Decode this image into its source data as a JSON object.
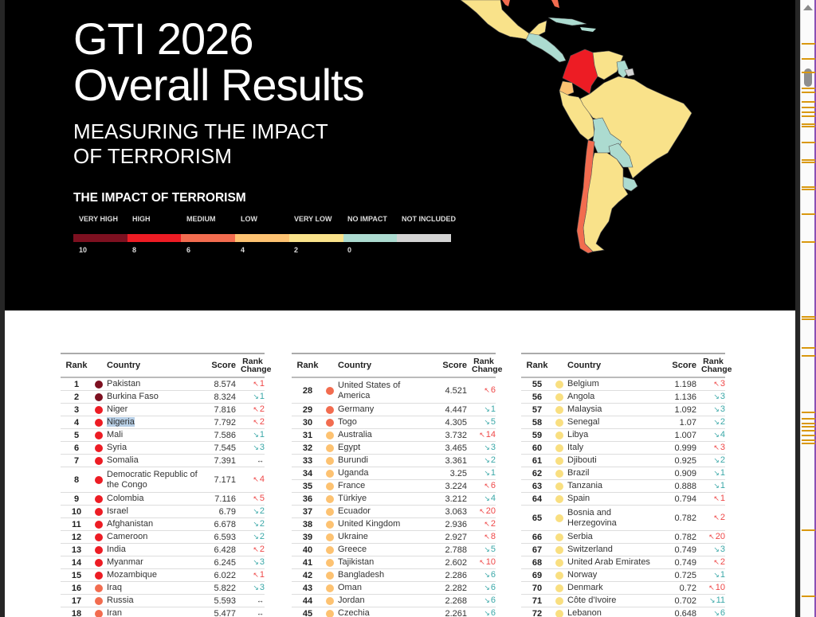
{
  "hero": {
    "title_line1": "GTI 2026",
    "title_line2": "Overall Results",
    "subtitle_line1": "MEASURING THE IMPACT",
    "subtitle_line2": "OF TERRORISM"
  },
  "legend": {
    "title": "THE IMPACT OF TERRORISM",
    "categories": [
      {
        "label": "VERY HIGH",
        "color": "#7d1020"
      },
      {
        "label": "HIGH",
        "color": "#ed1c24"
      },
      {
        "label": "MEDIUM",
        "color": "#f26c4f"
      },
      {
        "label": "LOW",
        "color": "#fdc271"
      },
      {
        "label": "VERY LOW",
        "color": "#f9e28a"
      },
      {
        "label": "NO IMPACT",
        "color": "#acdbd0"
      },
      {
        "label": "NOT INCLUDED",
        "color": "#d3d3d3"
      }
    ],
    "ticks": [
      "10",
      "8",
      "6",
      "4",
      "2",
      "0"
    ]
  },
  "table_headers": {
    "rank": "Rank",
    "country": "Country",
    "score": "Score",
    "change_line1": "Rank",
    "change_line2": "Change"
  },
  "colors": {
    "very_high": "#7d1020",
    "high": "#ed1c24",
    "medium": "#f26c4f",
    "low": "#fdc271",
    "very_low": "#f9df80",
    "up": "#ef4747",
    "down": "#3aa8a8"
  },
  "tables": [
    {
      "rows": [
        {
          "rank": "1",
          "country": "Pakistan",
          "score": "8.574",
          "dir": "up",
          "change": "1",
          "level": "very_high"
        },
        {
          "rank": "2",
          "country": "Burkina Faso",
          "score": "8.324",
          "dir": "down",
          "change": "1",
          "level": "very_high"
        },
        {
          "rank": "3",
          "country": "Niger",
          "score": "7.816",
          "dir": "up",
          "change": "2",
          "level": "high"
        },
        {
          "rank": "4",
          "country": "Nigeria",
          "score": "7.792",
          "dir": "up",
          "change": "2",
          "level": "high",
          "highlight": true
        },
        {
          "rank": "5",
          "country": "Mali",
          "score": "7.586",
          "dir": "down",
          "change": "1",
          "level": "high"
        },
        {
          "rank": "6",
          "country": "Syria",
          "score": "7.545",
          "dir": "down",
          "change": "3",
          "level": "high"
        },
        {
          "rank": "7",
          "country": "Somalia",
          "score": "7.391",
          "dir": "same",
          "change": "",
          "level": "high"
        },
        {
          "rank": "8",
          "country": "Democratic Republic of the Congo",
          "score": "7.171",
          "dir": "up",
          "change": "4",
          "level": "high",
          "tall": true
        },
        {
          "rank": "9",
          "country": "Colombia",
          "score": "7.116",
          "dir": "up",
          "change": "5",
          "level": "high"
        },
        {
          "rank": "10",
          "country": "Israel",
          "score": "6.79",
          "dir": "down",
          "change": "2",
          "level": "high"
        },
        {
          "rank": "11",
          "country": "Afghanistan",
          "score": "6.678",
          "dir": "down",
          "change": "2",
          "level": "high"
        },
        {
          "rank": "12",
          "country": "Cameroon",
          "score": "6.593",
          "dir": "down",
          "change": "2",
          "level": "high"
        },
        {
          "rank": "13",
          "country": "India",
          "score": "6.428",
          "dir": "up",
          "change": "2",
          "level": "high"
        },
        {
          "rank": "14",
          "country": "Myanmar",
          "score": "6.245",
          "dir": "down",
          "change": "3",
          "level": "high"
        },
        {
          "rank": "15",
          "country": "Mozambique",
          "score": "6.022",
          "dir": "up",
          "change": "1",
          "level": "high"
        },
        {
          "rank": "16",
          "country": "Iraq",
          "score": "5.822",
          "dir": "down",
          "change": "3",
          "level": "medium"
        },
        {
          "rank": "17",
          "country": "Russia",
          "score": "5.593",
          "dir": "same",
          "change": "",
          "level": "medium"
        },
        {
          "rank": "18",
          "country": "Iran",
          "score": "5.477",
          "dir": "same",
          "change": "",
          "level": "medium"
        }
      ]
    },
    {
      "rows": [
        {
          "rank": "28",
          "country": "United States of America",
          "score": "4.521",
          "dir": "up",
          "change": "6",
          "level": "medium",
          "tall": true
        },
        {
          "rank": "29",
          "country": "Germany",
          "score": "4.447",
          "dir": "down",
          "change": "1",
          "level": "medium"
        },
        {
          "rank": "30",
          "country": "Togo",
          "score": "4.305",
          "dir": "down",
          "change": "5",
          "level": "medium"
        },
        {
          "rank": "31",
          "country": "Australia",
          "score": "3.732",
          "dir": "up",
          "change": "14",
          "level": "low"
        },
        {
          "rank": "32",
          "country": "Egypt",
          "score": "3.465",
          "dir": "down",
          "change": "3",
          "level": "low"
        },
        {
          "rank": "33",
          "country": "Burundi",
          "score": "3.361",
          "dir": "down",
          "change": "2",
          "level": "low"
        },
        {
          "rank": "34",
          "country": "Uganda",
          "score": "3.25",
          "dir": "down",
          "change": "1",
          "level": "low"
        },
        {
          "rank": "35",
          "country": "France",
          "score": "3.224",
          "dir": "up",
          "change": "6",
          "level": "low"
        },
        {
          "rank": "36",
          "country": "Türkiye",
          "score": "3.212",
          "dir": "down",
          "change": "4",
          "level": "low"
        },
        {
          "rank": "37",
          "country": "Ecuador",
          "score": "3.063",
          "dir": "up",
          "change": "20",
          "level": "low"
        },
        {
          "rank": "38",
          "country": "United Kingdom",
          "score": "2.936",
          "dir": "up",
          "change": "2",
          "level": "low"
        },
        {
          "rank": "39",
          "country": "Ukraine",
          "score": "2.927",
          "dir": "up",
          "change": "8",
          "level": "low"
        },
        {
          "rank": "40",
          "country": "Greece",
          "score": "2.788",
          "dir": "down",
          "change": "5",
          "level": "low"
        },
        {
          "rank": "41",
          "country": "Tajikistan",
          "score": "2.602",
          "dir": "up",
          "change": "10",
          "level": "low"
        },
        {
          "rank": "42",
          "country": "Bangladesh",
          "score": "2.286",
          "dir": "down",
          "change": "6",
          "level": "low"
        },
        {
          "rank": "43",
          "country": "Oman",
          "score": "2.282",
          "dir": "down",
          "change": "6",
          "level": "low"
        },
        {
          "rank": "44",
          "country": "Jordan",
          "score": "2.268",
          "dir": "down",
          "change": "6",
          "level": "low"
        },
        {
          "rank": "45",
          "country": "Czechia",
          "score": "2.261",
          "dir": "down",
          "change": "6",
          "level": "low"
        }
      ]
    },
    {
      "rows": [
        {
          "rank": "55",
          "country": "Belgium",
          "score": "1.198",
          "dir": "up",
          "change": "3",
          "level": "very_low"
        },
        {
          "rank": "56",
          "country": "Angola",
          "score": "1.136",
          "dir": "down",
          "change": "3",
          "level": "very_low"
        },
        {
          "rank": "57",
          "country": "Malaysia",
          "score": "1.092",
          "dir": "down",
          "change": "3",
          "level": "very_low"
        },
        {
          "rank": "58",
          "country": "Senegal",
          "score": "1.07",
          "dir": "down",
          "change": "2",
          "level": "very_low"
        },
        {
          "rank": "59",
          "country": "Libya",
          "score": "1.007",
          "dir": "down",
          "change": "4",
          "level": "very_low"
        },
        {
          "rank": "60",
          "country": "Italy",
          "score": "0.999",
          "dir": "up",
          "change": "3",
          "level": "very_low"
        },
        {
          "rank": "61",
          "country": "Djibouti",
          "score": "0.925",
          "dir": "down",
          "change": "2",
          "level": "very_low"
        },
        {
          "rank": "62",
          "country": "Brazil",
          "score": "0.909",
          "dir": "down",
          "change": "1",
          "level": "very_low"
        },
        {
          "rank": "63",
          "country": "Tanzania",
          "score": "0.888",
          "dir": "down",
          "change": "1",
          "level": "very_low"
        },
        {
          "rank": "64",
          "country": "Spain",
          "score": "0.794",
          "dir": "up",
          "change": "1",
          "level": "very_low"
        },
        {
          "rank": "65",
          "country": "Bosnia and Herzegovina",
          "score": "0.782",
          "dir": "up",
          "change": "2",
          "level": "very_low",
          "tall": true
        },
        {
          "rank": "66",
          "country": "Serbia",
          "score": "0.782",
          "dir": "up",
          "change": "20",
          "level": "very_low"
        },
        {
          "rank": "67",
          "country": "Switzerland",
          "score": "0.749",
          "dir": "down",
          "change": "3",
          "level": "very_low"
        },
        {
          "rank": "68",
          "country": "United Arab Emirates",
          "score": "0.749",
          "dir": "up",
          "change": "2",
          "level": "very_low"
        },
        {
          "rank": "69",
          "country": "Norway",
          "score": "0.725",
          "dir": "down",
          "change": "1",
          "level": "very_low"
        },
        {
          "rank": "70",
          "country": "Denmark",
          "score": "0.72",
          "dir": "up",
          "change": "10",
          "level": "very_low"
        },
        {
          "rank": "71",
          "country": "Côte d'Ivoire",
          "score": "0.702",
          "dir": "down",
          "change": "11",
          "level": "very_low"
        },
        {
          "rank": "72",
          "country": "Lebanon",
          "score": "0.648",
          "dir": "down",
          "change": "6",
          "level": "very_low"
        }
      ]
    }
  ],
  "glyphs": {
    "up": "↖",
    "down": "↘",
    "same": "↔"
  },
  "scrollbar": {
    "markers": [
      54,
      73,
      90,
      110,
      115,
      127,
      134,
      140,
      145,
      155,
      158,
      178,
      200,
      203,
      234,
      237,
      268,
      303,
      397,
      400,
      436,
      446,
      517,
      525,
      531,
      535,
      540,
      546,
      552,
      556,
      665,
      748
    ]
  }
}
